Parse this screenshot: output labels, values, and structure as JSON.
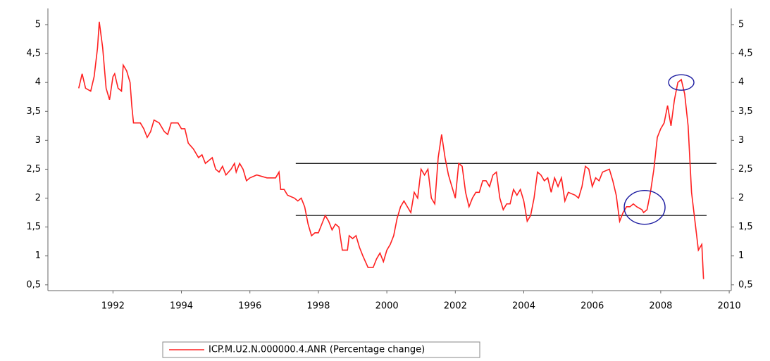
{
  "chart_data": {
    "type": "line",
    "x": [
      1991.0,
      1991.1,
      1991.2,
      1991.35,
      1991.45,
      1991.55,
      1991.6,
      1991.7,
      1991.8,
      1991.9,
      1992.0,
      1992.05,
      1992.15,
      1992.25,
      1992.3,
      1992.4,
      1992.5,
      1992.55,
      1992.6,
      1992.8,
      1992.9,
      1993.0,
      1993.1,
      1993.2,
      1993.35,
      1993.5,
      1993.6,
      1993.7,
      1993.9,
      1994.0,
      1994.1,
      1994.2,
      1994.35,
      1994.5,
      1994.6,
      1994.7,
      1994.8,
      1994.9,
      1995.0,
      1995.1,
      1995.2,
      1995.3,
      1995.45,
      1995.55,
      1995.6,
      1995.7,
      1995.8,
      1995.9,
      1996.0,
      1996.2,
      1996.5,
      1996.75,
      1996.85,
      1996.9,
      1997.0,
      1997.1,
      1997.3,
      1997.4,
      1997.5,
      1997.6,
      1997.7,
      1997.8,
      1997.9,
      1998.0,
      1998.1,
      1998.2,
      1998.3,
      1998.4,
      1998.5,
      1998.6,
      1998.7,
      1998.85,
      1998.9,
      1999.0,
      1999.1,
      1999.2,
      1999.3,
      1999.45,
      1999.6,
      1999.7,
      1999.8,
      1999.9,
      2000.0,
      2000.1,
      2000.2,
      2000.3,
      2000.4,
      2000.5,
      2000.6,
      2000.7,
      2000.8,
      2000.9,
      2001.0,
      2001.1,
      2001.2,
      2001.3,
      2001.4,
      2001.5,
      2001.6,
      2001.7,
      2001.8,
      2001.9,
      2002.0,
      2002.1,
      2002.2,
      2002.3,
      2002.4,
      2002.5,
      2002.6,
      2002.7,
      2002.8,
      2002.9,
      2003.0,
      2003.1,
      2003.2,
      2003.3,
      2003.4,
      2003.5,
      2003.6,
      2003.7,
      2003.8,
      2003.9,
      2004.0,
      2004.1,
      2004.2,
      2004.3,
      2004.4,
      2004.5,
      2004.6,
      2004.7,
      2004.8,
      2004.9,
      2005.0,
      2005.1,
      2005.2,
      2005.3,
      2005.5,
      2005.6,
      2005.7,
      2005.8,
      2005.9,
      2006.0,
      2006.1,
      2006.2,
      2006.3,
      2006.5,
      2006.6,
      2006.7,
      2006.8,
      2006.9,
      2007.0,
      2007.1,
      2007.2,
      2007.3,
      2007.45,
      2007.5,
      2007.6,
      2007.7,
      2007.8,
      2007.9,
      2008.0,
      2008.1,
      2008.2,
      2008.3,
      2008.4,
      2008.5,
      2008.6,
      2008.7,
      2008.8,
      2008.9,
      2009.0,
      2009.1,
      2009.2,
      2009.25
    ],
    "series": [
      {
        "name": "ICP.M.U2.N.000000.4.ANR (Percentage change)",
        "color": "#ff2020",
        "values": [
          3.9,
          4.15,
          3.9,
          3.85,
          4.1,
          4.6,
          5.05,
          4.6,
          3.9,
          3.7,
          4.1,
          4.15,
          3.9,
          3.85,
          4.3,
          4.2,
          4.0,
          3.6,
          3.3,
          3.3,
          3.2,
          3.05,
          3.15,
          3.35,
          3.3,
          3.15,
          3.1,
          3.3,
          3.3,
          3.2,
          3.2,
          2.95,
          2.85,
          2.7,
          2.75,
          2.6,
          2.65,
          2.7,
          2.5,
          2.45,
          2.55,
          2.4,
          2.5,
          2.6,
          2.45,
          2.6,
          2.5,
          2.3,
          2.35,
          2.4,
          2.35,
          2.35,
          2.45,
          2.15,
          2.15,
          2.05,
          2.0,
          1.95,
          2.0,
          1.85,
          1.55,
          1.35,
          1.4,
          1.4,
          1.55,
          1.7,
          1.6,
          1.45,
          1.55,
          1.5,
          1.1,
          1.1,
          1.35,
          1.3,
          1.35,
          1.15,
          1.0,
          0.8,
          0.8,
          0.95,
          1.05,
          0.9,
          1.1,
          1.2,
          1.35,
          1.65,
          1.85,
          1.95,
          1.85,
          1.75,
          2.1,
          2.0,
          2.5,
          2.4,
          2.5,
          2.0,
          1.9,
          2.7,
          3.1,
          2.7,
          2.4,
          2.2,
          2.0,
          2.6,
          2.55,
          2.1,
          1.85,
          2.0,
          2.1,
          2.1,
          2.3,
          2.3,
          2.2,
          2.4,
          2.45,
          2.0,
          1.8,
          1.9,
          1.9,
          2.15,
          2.05,
          2.15,
          1.95,
          1.6,
          1.7,
          2.0,
          2.45,
          2.4,
          2.3,
          2.35,
          2.1,
          2.35,
          2.2,
          2.35,
          1.95,
          2.1,
          2.05,
          2.0,
          2.2,
          2.55,
          2.5,
          2.2,
          2.35,
          2.3,
          2.45,
          2.5,
          2.3,
          2.05,
          1.6,
          1.75,
          1.85,
          1.85,
          1.9,
          1.85,
          1.8,
          1.75,
          1.8,
          2.1,
          2.5,
          3.05,
          3.2,
          3.3,
          3.6,
          3.25,
          3.7,
          4.0,
          4.05,
          3.8,
          3.25,
          2.1,
          1.6,
          1.1,
          1.2,
          0.6
        ]
      }
    ],
    "xlim": [
      1990.1,
      2010.06
    ],
    "xticks": [
      1992,
      1994,
      1996,
      1998,
      2000,
      2002,
      2004,
      2006,
      2008,
      2010
    ],
    "ylim": [
      0.4,
      5.28
    ],
    "yticks": [
      {
        "value": 0.5,
        "label": "0,5"
      },
      1,
      {
        "value": 1.5,
        "label": "1,5"
      },
      2,
      {
        "value": 2.5,
        "label": "2,5"
      },
      3,
      {
        "value": 3.5,
        "label": "3,5"
      },
      4,
      {
        "value": 4.5,
        "label": "4,5"
      },
      5
    ],
    "hlines": [
      {
        "y": 2.6,
        "x": [
          1997.34,
          2009.63
        ]
      },
      {
        "y": 1.7,
        "x": [
          1997.34,
          2009.34
        ]
      }
    ],
    "circles": [
      {
        "x": 2008.6,
        "y": 4.0
      },
      {
        "x": 2007.53,
        "y": 1.84
      }
    ],
    "legend": "bottom"
  }
}
